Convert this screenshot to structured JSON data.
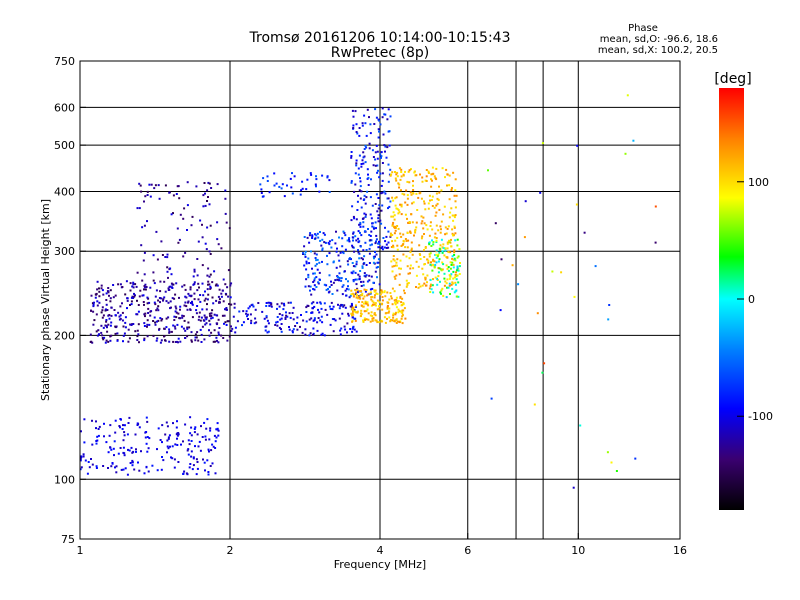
{
  "chart_data": {
    "type": "scatter",
    "title": "Tromsø 20161206 10:14:00-10:15:43",
    "subtitle": "RwPretec (8p)",
    "xlabel": "Frequency [MHz]",
    "ylabel": "Stationary phase Virtual Height [km]",
    "x_scale": "log",
    "y_scale": "log",
    "xlim": [
      1,
      16
    ],
    "ylim": [
      75,
      750
    ],
    "x_ticks": [
      1,
      2,
      4,
      6,
      10,
      16
    ],
    "x_tick_labels": [
      "1",
      "2",
      "4",
      "6",
      "10",
      "16"
    ],
    "x_gridlines": [
      2,
      4,
      6,
      7.5,
      8.5,
      10
    ],
    "y_ticks": [
      75,
      100,
      200,
      300,
      400,
      500,
      600,
      750
    ],
    "y_tick_labels": [
      "75",
      "100",
      "200",
      "300",
      "400",
      "500",
      "600",
      "750"
    ],
    "y_gridlines": [
      100,
      200,
      300,
      400,
      500,
      600
    ],
    "grid": true,
    "stats": {
      "heading": "Phase",
      "line1": "mean, sd,O: -96.6, 18.6",
      "line2": "mean, sd,X: 100.2, 20.5"
    },
    "colorbar": {
      "label": "[deg]",
      "range": [
        -180,
        180
      ],
      "ticks": [
        100,
        0,
        -100
      ],
      "tick_labels": [
        "100",
        "0",
        "-100"
      ]
    },
    "point_groups": [
      {
        "xr": [
          1.0,
          1.9
        ],
        "yr": [
          102,
          135
        ],
        "n": 220,
        "pr": [
          -120,
          -85
        ]
      },
      {
        "xr": [
          1.05,
          2.05
        ],
        "yr": [
          193,
          260
        ],
        "n": 460,
        "pr": [
          -150,
          -95
        ]
      },
      {
        "xr": [
          1.3,
          2.0
        ],
        "yr": [
          260,
          420
        ],
        "n": 110,
        "pr": [
          -150,
          -100
        ]
      },
      {
        "xr": [
          2.05,
          3.6
        ],
        "yr": [
          200,
          235
        ],
        "n": 180,
        "pr": [
          -130,
          -70
        ]
      },
      {
        "xr": [
          2.8,
          4.0
        ],
        "yr": [
          240,
          330
        ],
        "n": 240,
        "pr": [
          -125,
          -40
        ]
      },
      {
        "xr": [
          3.5,
          4.2
        ],
        "yr": [
          300,
          600
        ],
        "n": 210,
        "pr": [
          -125,
          -55
        ]
      },
      {
        "xr": [
          2.3,
          3.3
        ],
        "yr": [
          390,
          440
        ],
        "n": 40,
        "pr": [
          -105,
          -55
        ]
      },
      {
        "xr": [
          3.5,
          4.5
        ],
        "yr": [
          212,
          250
        ],
        "n": 200,
        "pr": [
          85,
          135
        ]
      },
      {
        "xr": [
          4.2,
          5.7
        ],
        "yr": [
          250,
          450
        ],
        "n": 360,
        "pr": [
          90,
          135
        ]
      },
      {
        "xr": [
          5.0,
          5.8
        ],
        "yr": [
          240,
          320
        ],
        "n": 110,
        "pr": [
          -20,
          100
        ]
      },
      {
        "xr": [
          6.1,
          14.5
        ],
        "yr": [
          90,
          650
        ],
        "n": 35,
        "pr": [
          -150,
          160
        ]
      }
    ]
  }
}
